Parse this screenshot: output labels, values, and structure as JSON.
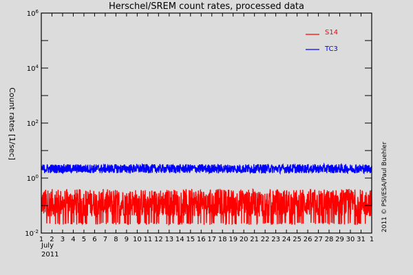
{
  "chart_data": {
    "type": "line",
    "title": "Herschel/SREM count rates, processed data",
    "xlabel": "July 2011",
    "ylabel": "Count rates [1/sec]",
    "yscale": "log",
    "ylim": [
      0.01,
      1000000
    ],
    "ytick_labels": [
      "10^-2",
      "10^0",
      "10^2",
      "10^4",
      "10^6"
    ],
    "ytick_values": [
      0.01,
      1,
      100,
      10000,
      1000000
    ],
    "x_tick_labels": [
      "1",
      "2",
      "3",
      "4",
      "5",
      "6",
      "7",
      "8",
      "9",
      "10",
      "11",
      "12",
      "13",
      "14",
      "15",
      "16",
      "17",
      "18",
      "19",
      "20",
      "21",
      "22",
      "23",
      "24",
      "25",
      "26",
      "27",
      "28",
      "29",
      "30",
      "31",
      "1"
    ],
    "x_month_label": "July",
    "x_year_label": "2011",
    "legend_position": "upper right",
    "grid": false,
    "series": [
      {
        "name": "S14",
        "color": "#ff0000",
        "typical_range": [
          0.04,
          0.4
        ],
        "min_spikes": 0.02,
        "description": "dense noisy band with frequent downward spikes"
      },
      {
        "name": "TC3",
        "color": "#0000ff",
        "typical_range": [
          1.5,
          3.2
        ],
        "description": "steady noisy band around ~2.2 counts/sec"
      }
    ],
    "annotation": "2011 © PSI/ESA/Paul Buehler"
  },
  "colors": {
    "background": "#dcdcdc",
    "axis": "#000000",
    "s14": "#ff0000",
    "tc3": "#0000ff"
  }
}
